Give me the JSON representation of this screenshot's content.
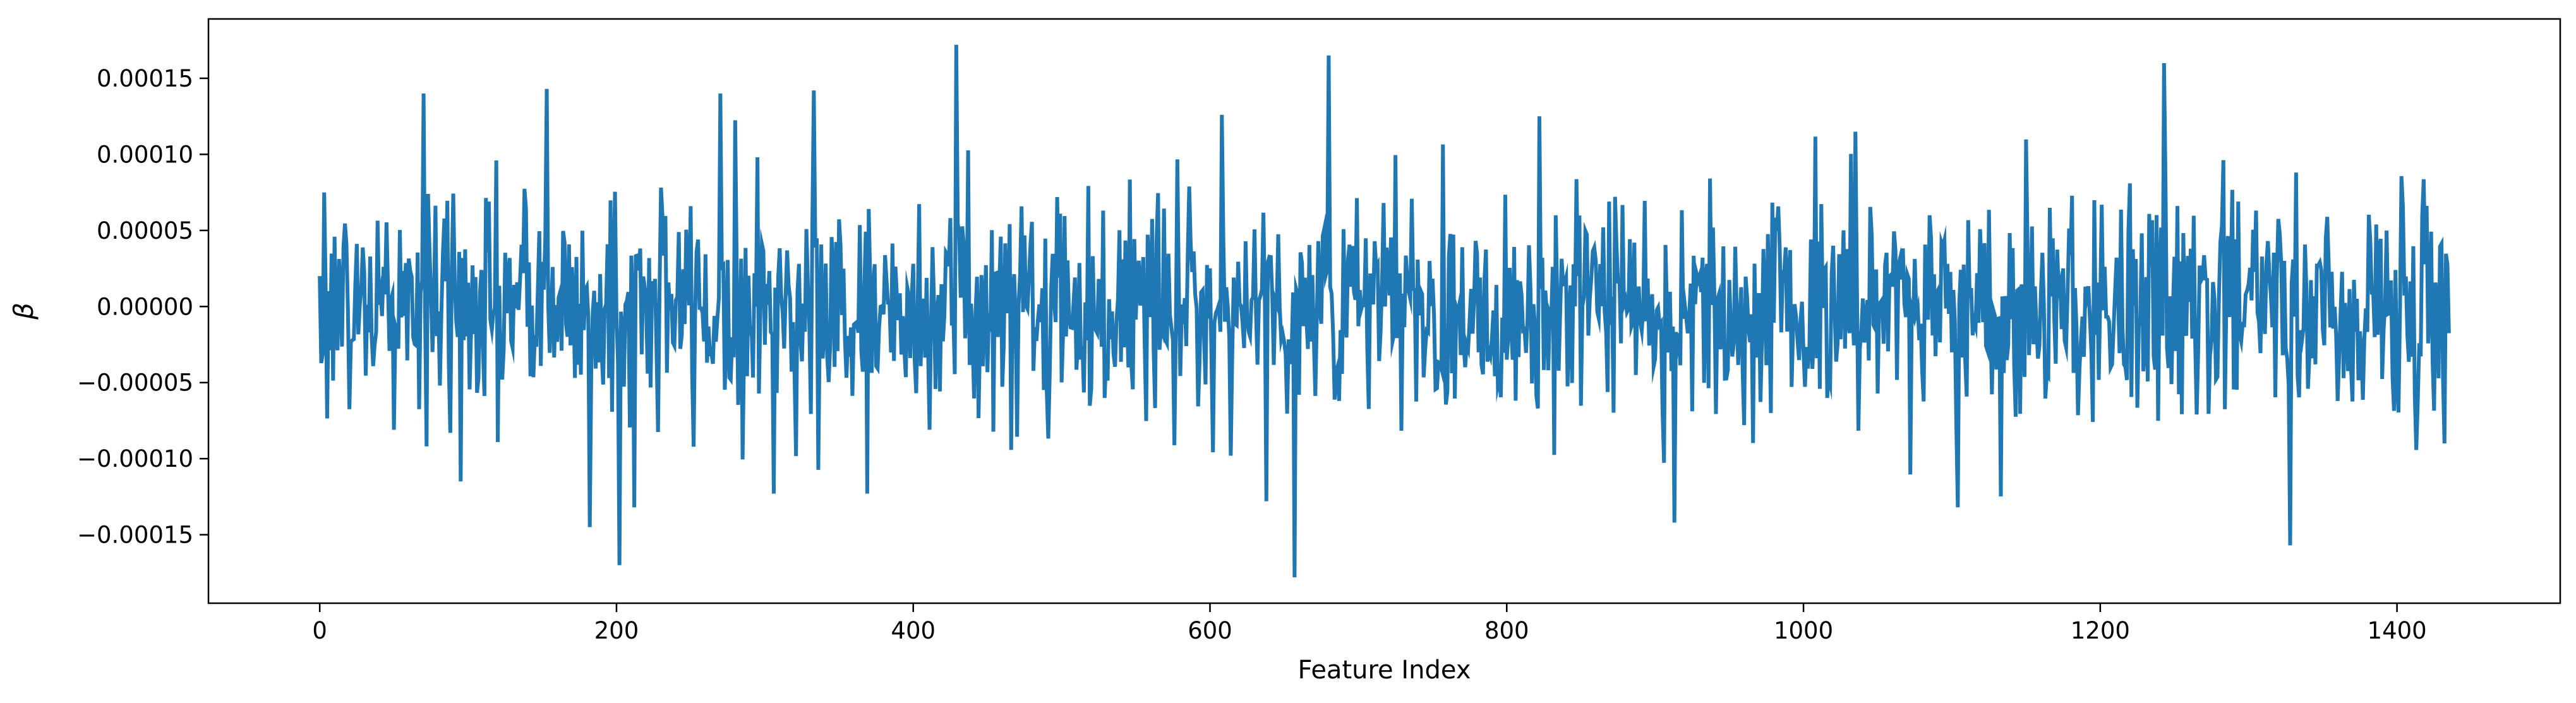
{
  "chart_data": {
    "type": "line",
    "xlabel": "Feature Index",
    "ylabel": "β",
    "xlim": [
      -75,
      1510
    ],
    "ylim": [
      -0.000195,
      0.000189
    ],
    "xticks": [
      0,
      200,
      400,
      600,
      800,
      1000,
      1200,
      1400
    ],
    "xtick_labels": [
      "0",
      "200",
      "400",
      "600",
      "800",
      "1000",
      "1200",
      "1400"
    ],
    "yticks": [
      -0.00015,
      -0.0001,
      -5e-05,
      0,
      5e-05,
      0.0001,
      0.00015
    ],
    "ytick_labels": [
      "−0.00015",
      "−0.00010",
      "−0.00005",
      "0.00000",
      "0.00005",
      "0.00010",
      "0.00015"
    ],
    "grid": false,
    "legend": "none",
    "series_color": "#1f77b4",
    "n_points": 1436,
    "notable_points": [
      {
        "x": 0,
        "y": 2e-05
      },
      {
        "x": 3,
        "y": 7.5e-05
      },
      {
        "x": 70,
        "y": 0.00014
      },
      {
        "x": 95,
        "y": -0.000115
      },
      {
        "x": 153,
        "y": 0.000143
      },
      {
        "x": 182,
        "y": -0.000145
      },
      {
        "x": 202,
        "y": -0.00017
      },
      {
        "x": 212,
        "y": -0.000132
      },
      {
        "x": 270,
        "y": 0.00014
      },
      {
        "x": 306,
        "y": -0.000123
      },
      {
        "x": 333,
        "y": 0.000142
      },
      {
        "x": 369,
        "y": -0.000123
      },
      {
        "x": 429,
        "y": 0.000172
      },
      {
        "x": 608,
        "y": 0.000126
      },
      {
        "x": 638,
        "y": -0.000128
      },
      {
        "x": 657,
        "y": -0.000178
      },
      {
        "x": 680,
        "y": 0.000165
      },
      {
        "x": 822,
        "y": 0.000125
      },
      {
        "x": 913,
        "y": -0.000142
      },
      {
        "x": 1104,
        "y": -0.000132
      },
      {
        "x": 1243,
        "y": 0.00016
      },
      {
        "x": 1328,
        "y": -0.000157
      },
      {
        "x": 1432,
        "y": -9e-05
      }
    ]
  }
}
